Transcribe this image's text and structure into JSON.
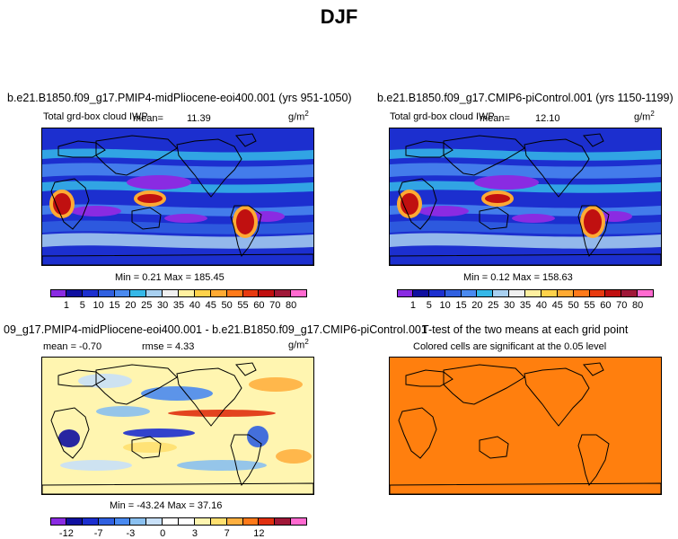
{
  "chart_data": [
    {
      "type": "heatmap",
      "title": "b.e21.B1850.f09_g17.PMIP4-midPliocene-eoi400.001 (yrs 951-1050)",
      "subtitle_left": "Total grd-box cloud IWP",
      "mean_label": "mean=",
      "mean_value": "11.39",
      "units": "g/m",
      "units_sup": "2",
      "minmax": "Min =   0.21 Max = 185.45",
      "levels": [
        "1",
        "5",
        "10",
        "15",
        "20",
        "25",
        "30",
        "35",
        "40",
        "45",
        "50",
        "55",
        "60",
        "70",
        "80"
      ],
      "colors": [
        "#8a2be2",
        "#1010a0",
        "#1c2fcf",
        "#3060e0",
        "#4a8af0",
        "#35b8e8",
        "#a8d0f0",
        "#f0f0f0",
        "#fff0a0",
        "#ffd24a",
        "#ffaa33",
        "#ff7a1a",
        "#e83a10",
        "#c01010",
        "#a01838",
        "#ff6ad0"
      ]
    },
    {
      "type": "heatmap",
      "title": "b.e21.B1850.f09_g17.CMIP6-piControl.001 (yrs 1150-1199)",
      "subtitle_left": "Total grd-box cloud IWP",
      "mean_label": "mean=",
      "mean_value": "12.10",
      "units": "g/m",
      "units_sup": "2",
      "minmax": "Min =   0.12 Max = 158.63",
      "levels": [
        "1",
        "5",
        "10",
        "15",
        "20",
        "25",
        "30",
        "35",
        "40",
        "45",
        "50",
        "55",
        "60",
        "70",
        "80"
      ],
      "colors": [
        "#8a2be2",
        "#1010a0",
        "#1c2fcf",
        "#3060e0",
        "#4a8af0",
        "#35b8e8",
        "#a8d0f0",
        "#f0f0f0",
        "#fff0a0",
        "#ffd24a",
        "#ffaa33",
        "#ff7a1a",
        "#e83a10",
        "#c01010",
        "#a01838",
        "#ff6ad0"
      ]
    },
    {
      "type": "heatmap",
      "title": "09_g17.PMIP4-midPliocene-eoi400.001 - b.e21.B1850.f09_g17.CMIP6-piControl.001",
      "mean_text": "mean =   -0.70",
      "rmse_text": "rmse =   4.33",
      "units": "g/m",
      "units_sup": "2",
      "minmax": "Min = -43.24 Max =  37.16",
      "levels": [
        "-12",
        "-7",
        "-3",
        "0",
        "3",
        "7",
        "12"
      ],
      "tick_labels": [
        "-12",
        "-7",
        "-3",
        "0",
        "3",
        "7",
        "12"
      ],
      "colors": [
        "#8a2be2",
        "#1010a0",
        "#1c2fcf",
        "#3060e0",
        "#4a8af0",
        "#8ac0f0",
        "#c8e0f8",
        "#ffffff",
        "#ffffff",
        "#fff5b0",
        "#ffe070",
        "#ffb040",
        "#ff7a1a",
        "#e03010",
        "#a01838",
        "#ff6ad0"
      ]
    },
    {
      "type": "heatmap",
      "title": "T-test of the two means at each grid point",
      "subtitle": "Colored cells are significant at the 0.05 level",
      "fill_color": "#ff7f0e"
    }
  ],
  "main_title": "DJF"
}
